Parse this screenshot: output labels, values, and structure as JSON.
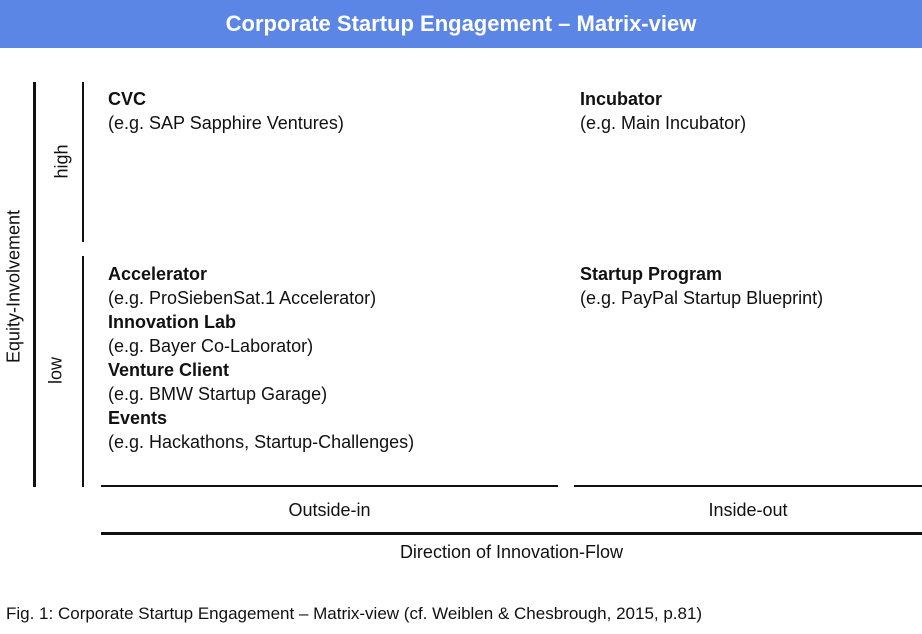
{
  "title": "Corporate Startup Engagement – Matrix-view",
  "y_axis": {
    "label": "Equity-Involvement",
    "high": "high",
    "low": "low"
  },
  "x_axis": {
    "label": "Direction of Innovation-Flow",
    "left": "Outside-in",
    "right": "Inside-out"
  },
  "cells": {
    "high_left": [
      {
        "name": "CVC",
        "example": "(e.g. SAP Sapphire Ventures)"
      }
    ],
    "high_right": [
      {
        "name": "Incubator",
        "example": "(e.g. Main Incubator)"
      }
    ],
    "low_left": [
      {
        "name": "Accelerator",
        "example": "(e.g. ProSiebenSat.1 Accelerator)"
      },
      {
        "name": "Innovation Lab",
        "example": "(e.g. Bayer Co-Laborator)"
      },
      {
        "name": "Venture Client",
        "example": "(e.g. BMW Startup Garage)"
      },
      {
        "name": "Events",
        "example": "(e.g. Hackathons, Startup-Challenges)"
      }
    ],
    "low_right": [
      {
        "name": "Startup Program",
        "example": "(e.g. PayPal Startup Blueprint)"
      }
    ]
  },
  "caption": "Fig. 1: Corporate Startup Engagement – Matrix-view (cf. Weiblen & Chesbrough, 2015, p.81)"
}
